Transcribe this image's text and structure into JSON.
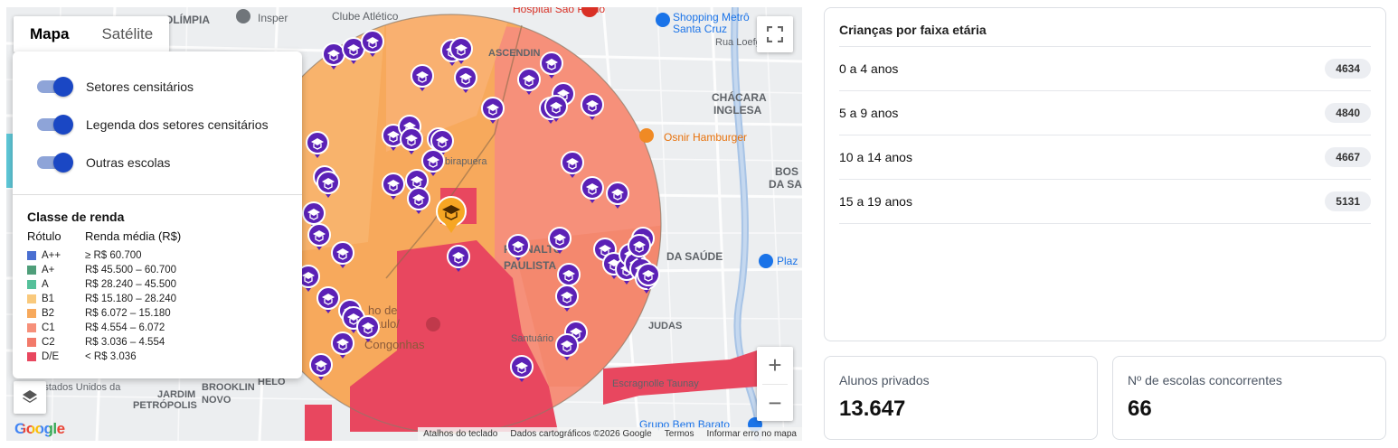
{
  "map": {
    "map_type_tabs": [
      {
        "label": "Mapa",
        "active": true
      },
      {
        "label": "Satélite",
        "active": false
      }
    ],
    "layers": [
      {
        "label": "Setores censitários",
        "enabled": true
      },
      {
        "label": "Legenda dos setores censitários",
        "enabled": true
      },
      {
        "label": "Outras escolas",
        "enabled": true
      }
    ],
    "legend": {
      "title": "Classe de renda",
      "col_label": "Rótulo",
      "col_income": "Renda média (R$)",
      "rows": [
        {
          "label": "A++",
          "range": "≥ R$ 60.700",
          "color": "#4a6fd1"
        },
        {
          "label": "A+",
          "range": "R$ 45.500 – 60.700",
          "color": "#4f9e7a"
        },
        {
          "label": "A",
          "range": "R$ 28.240 – 45.500",
          "color": "#55c09a"
        },
        {
          "label": "B1",
          "range": "R$ 15.180 – 28.240",
          "color": "#f9c97c"
        },
        {
          "label": "B2",
          "range": "R$ 6.072 – 15.180",
          "color": "#f7a95c"
        },
        {
          "label": "C1",
          "range": "R$ 4.554 – 6.072",
          "color": "#f6907a"
        },
        {
          "label": "C2",
          "range": "R$ 3.036 – 4.554",
          "color": "#f27a6a"
        },
        {
          "label": "D/E",
          "range": "< R$ 3.036",
          "color": "#e8475f"
        }
      ]
    },
    "place_labels": [
      "OLÍMPIA",
      "Insper",
      "Clube Atlético",
      "Hospital São Paulo",
      "Shopping Metrô",
      "Santa Cruz",
      "Rua Loefgr",
      "ASCENDIN",
      "CHÁCARA",
      "INGLESA",
      "Osnir Hamburger",
      "Ibirapuera",
      "BOS",
      "DA SA",
      "PLANALTO",
      "PAULISTA",
      "DA SAÚDE",
      "Plaz",
      "JUDAS",
      "Santuário",
      "Estados Unidos da",
      "JARDIM",
      "PETRÓPOLIS",
      "BROOKLIN",
      "NOVO",
      "ho de",
      "Paulo/",
      "Congonhas",
      "Escragnolle Taunay",
      "Grupo Bem Barato",
      "HELO"
    ],
    "attribution": [
      "Atalhos do teclado",
      "Dados cartográficos ©2026 Google",
      "Termos",
      "Informar erro no mapa"
    ],
    "logo_text": "Google",
    "zoom_in": "+",
    "zoom_out": "−"
  },
  "children_card": {
    "title": "Crianças por faixa etária",
    "rows": [
      {
        "label": "0 a 4 anos",
        "value": "4634"
      },
      {
        "label": "5 a 9 anos",
        "value": "4840"
      },
      {
        "label": "10 a 14 anos",
        "value": "4667"
      },
      {
        "label": "15 a 19 anos",
        "value": "5131"
      }
    ]
  },
  "stats": {
    "private_students_label": "Alunos privados",
    "private_students_value": "13.647",
    "competitor_schools_label": "Nº de escolas concorrentes",
    "competitor_schools_value": "66"
  },
  "colors": {
    "school_marker": "#5b21b6",
    "selected_marker": "#f6a623",
    "accent_toggle": "#1a47c4"
  }
}
